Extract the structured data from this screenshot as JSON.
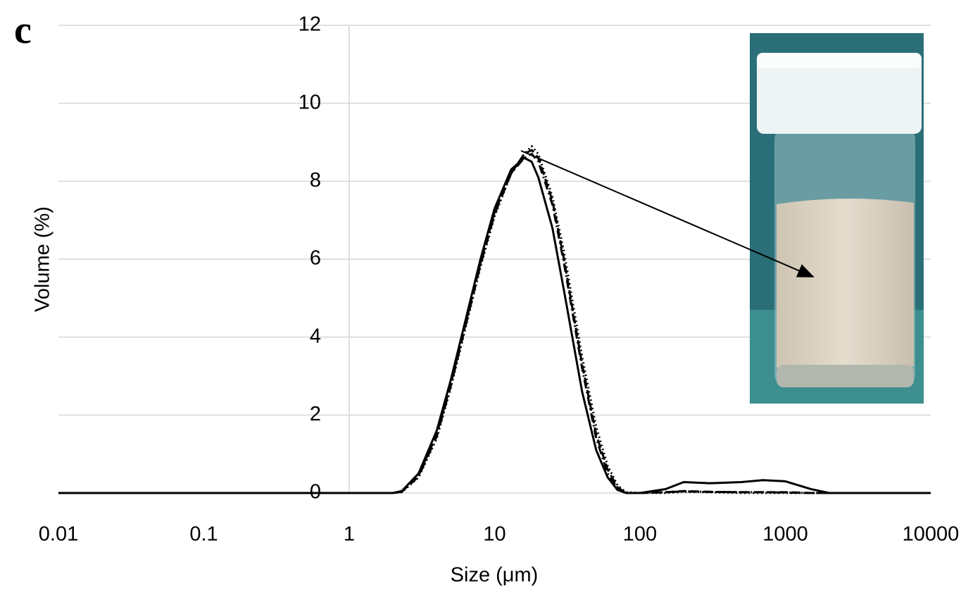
{
  "chart_data": {
    "type": "line",
    "panel_label": "c",
    "x_label": "Size (μm)",
    "y_label": "Volume (%)",
    "xscale": "log",
    "xlim": [
      0.01,
      10000
    ],
    "xticks": [
      0.01,
      0.1,
      1,
      10,
      100,
      1000,
      10000
    ],
    "ylim": [
      0,
      12
    ],
    "yticks": [
      0,
      2,
      4,
      6,
      8,
      10,
      12
    ],
    "grid": true,
    "y_axis_crosses_x": 1,
    "x": [
      0.01,
      0.1,
      1,
      2,
      2.3,
      3,
      4,
      5,
      6,
      8,
      10,
      13,
      16,
      18,
      20,
      25,
      30,
      40,
      50,
      60,
      70,
      80,
      100,
      150,
      200,
      300,
      500,
      700,
      1000,
      1500,
      2000,
      10000
    ],
    "series": [
      {
        "color": "#000000",
        "dash": "solid",
        "values": [
          0,
          0,
          0,
          0,
          0.05,
          0.5,
          1.6,
          2.9,
          4.1,
          6.0,
          7.3,
          8.3,
          8.6,
          8.5,
          8.1,
          6.8,
          5.2,
          2.6,
          1.1,
          0.4,
          0.08,
          0,
          0,
          0.1,
          0.28,
          0.25,
          0.28,
          0.33,
          0.3,
          0.1,
          0,
          0
        ]
      },
      {
        "color": "#000000",
        "dash": "dashed",
        "values": [
          0,
          0,
          0,
          0,
          0.03,
          0.45,
          1.5,
          2.8,
          4.0,
          5.9,
          7.2,
          8.2,
          8.7,
          8.8,
          8.6,
          7.5,
          6.0,
          3.3,
          1.5,
          0.6,
          0.15,
          0,
          0,
          0.02,
          0.05,
          0.03,
          0.02,
          0.02,
          0.02,
          0,
          0,
          0
        ]
      },
      {
        "color": "#000000",
        "dash": "dotted",
        "values": [
          0,
          0,
          0,
          0,
          0.02,
          0.4,
          1.4,
          2.7,
          3.9,
          5.8,
          7.1,
          8.2,
          8.7,
          8.9,
          8.7,
          7.6,
          6.2,
          3.5,
          1.7,
          0.7,
          0.2,
          0.02,
          0,
          0,
          0.03,
          0.02,
          0,
          0,
          0,
          0,
          0,
          0
        ]
      },
      {
        "color": "#000000",
        "dash": "dashdot",
        "values": [
          0,
          0,
          0,
          0,
          0.03,
          0.42,
          1.45,
          2.75,
          3.95,
          5.85,
          7.15,
          8.2,
          8.6,
          8.7,
          8.5,
          7.4,
          5.9,
          3.2,
          1.4,
          0.5,
          0.12,
          0,
          0,
          0.02,
          0.04,
          0.03,
          0.02,
          0.02,
          0.01,
          0,
          0,
          0
        ]
      }
    ]
  }
}
